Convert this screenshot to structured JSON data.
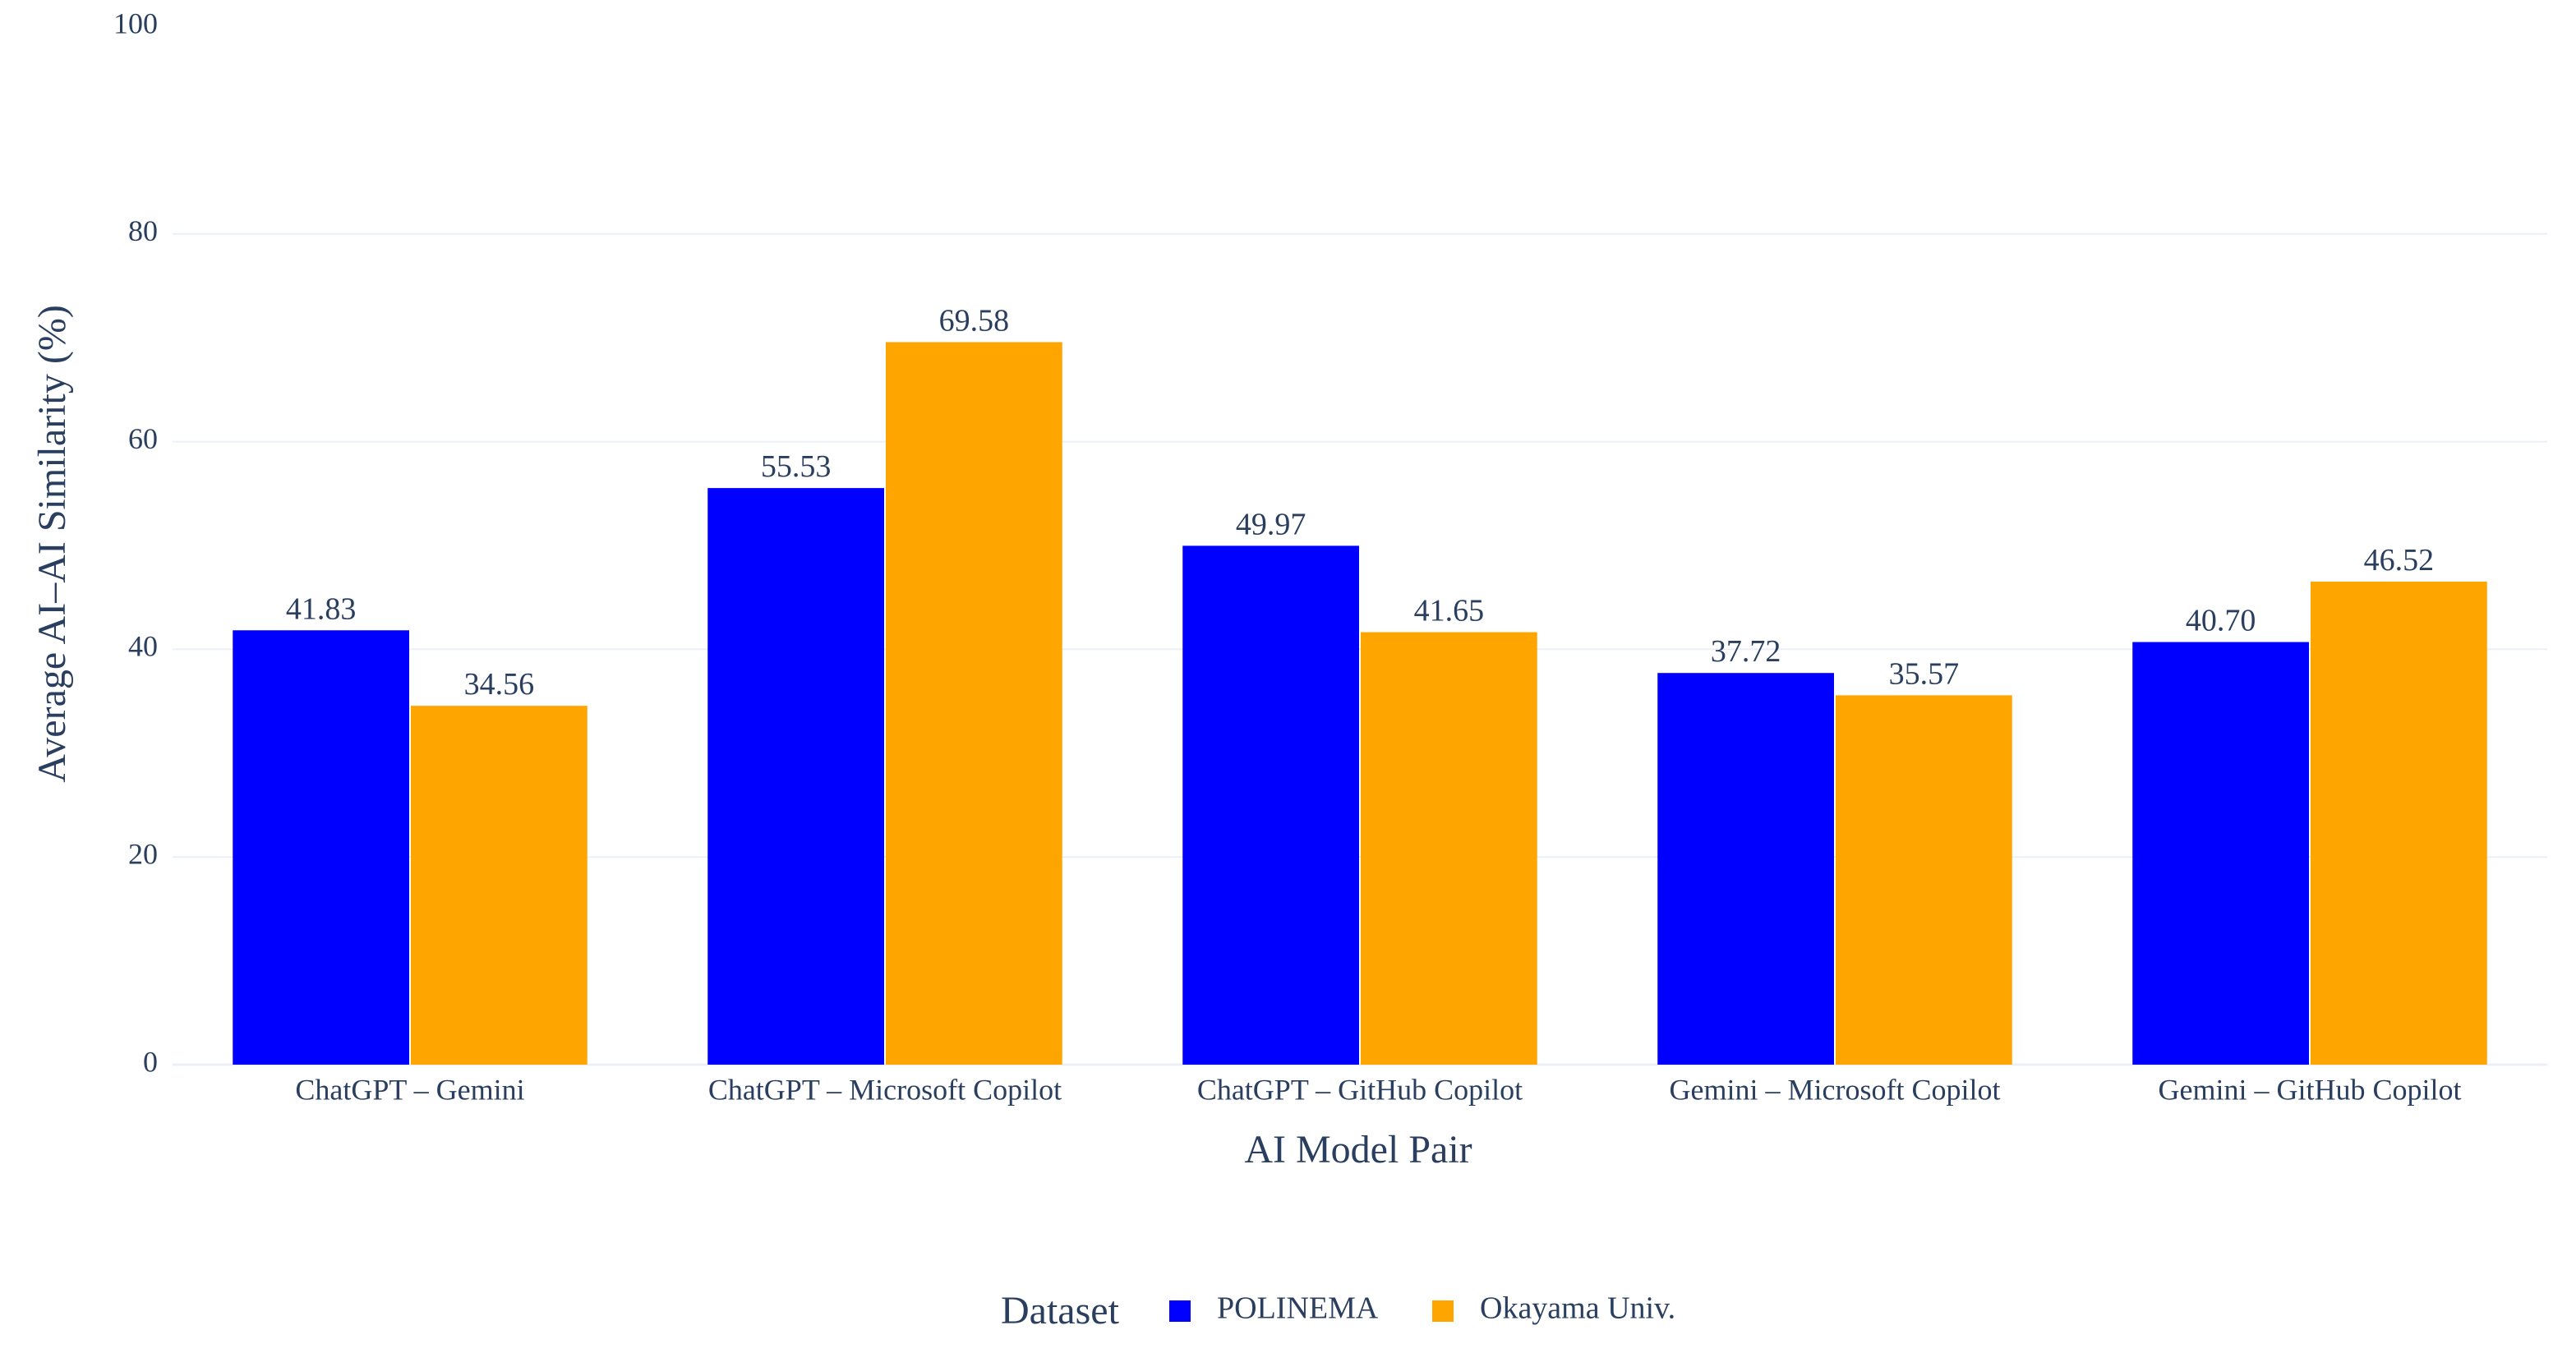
{
  "chart_data": {
    "type": "bar",
    "categories": [
      "ChatGPT – Gemini",
      "ChatGPT – Microsoft Copilot",
      "ChatGPT – GitHub Copilot",
      "Gemini – Microsoft Copilot",
      "Gemini – GitHub Copilot"
    ],
    "series": [
      {
        "name": "POLINEMA",
        "color": "#0000ff",
        "values": [
          41.83,
          55.53,
          49.97,
          37.72,
          40.7
        ],
        "labels": [
          "41.83",
          "55.53",
          "49.97",
          "37.72",
          "40.70"
        ]
      },
      {
        "name": "Okayama Univ.",
        "color": "#ffa500",
        "values": [
          34.56,
          69.58,
          41.65,
          35.57,
          46.52
        ],
        "labels": [
          "34.56",
          "69.58",
          "41.65",
          "35.57",
          "46.52"
        ]
      }
    ],
    "xlabel": "AI Model Pair",
    "ylabel": "Average AI–AI Similarity (%)",
    "ylim": [
      0,
      100
    ],
    "yticks": [
      "0",
      "20",
      "40",
      "60",
      "80",
      "100"
    ],
    "grid": true,
    "legend": {
      "title": "Dataset",
      "placement": "bottom-center"
    }
  }
}
